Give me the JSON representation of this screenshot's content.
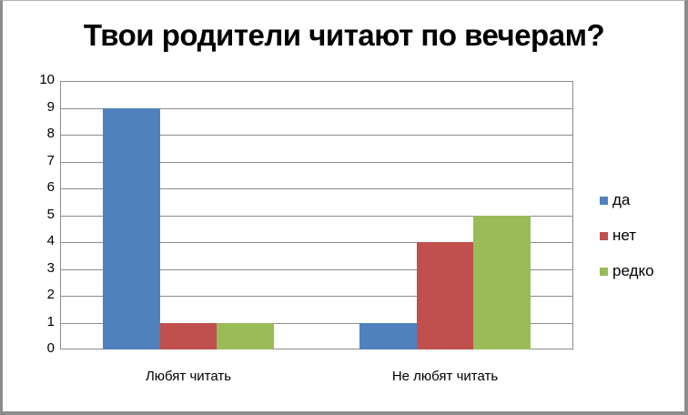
{
  "chart_data": {
    "type": "bar",
    "title": "Твои родители читают по вечерам?",
    "categories": [
      "Любят читать",
      "Не любят читать"
    ],
    "series": [
      {
        "name": "да",
        "color": "#4f81bd",
        "values": [
          9,
          1
        ]
      },
      {
        "name": "нет",
        "color": "#c0504d",
        "values": [
          1,
          4
        ]
      },
      {
        "name": "редко",
        "color": "#9bbb59",
        "values": [
          1,
          5
        ]
      }
    ],
    "xlabel": "",
    "ylabel": "",
    "ylim": [
      0,
      10
    ],
    "yticks": [
      "0",
      "1",
      "2",
      "3",
      "4",
      "5",
      "6",
      "7",
      "8",
      "9",
      "10"
    ],
    "grid": true,
    "legend_position": "right"
  }
}
